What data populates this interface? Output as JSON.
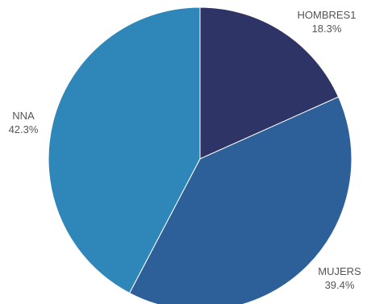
{
  "chart_data": {
    "type": "pie",
    "slices": [
      {
        "name": "HOMBRES1",
        "label": "HOMBRES1",
        "value": 18.3,
        "display": "18.3%",
        "color": "#2e3466"
      },
      {
        "name": "MUJERS",
        "label": "MUJERS",
        "value": 39.4,
        "display": "39.4%",
        "color": "#2d6098"
      },
      {
        "name": "NNA",
        "label": "NNA",
        "value": 42.3,
        "display": "42.3%",
        "color": "#2e87b8"
      }
    ],
    "start": "top",
    "direction": "clockwise",
    "legend": "none"
  }
}
